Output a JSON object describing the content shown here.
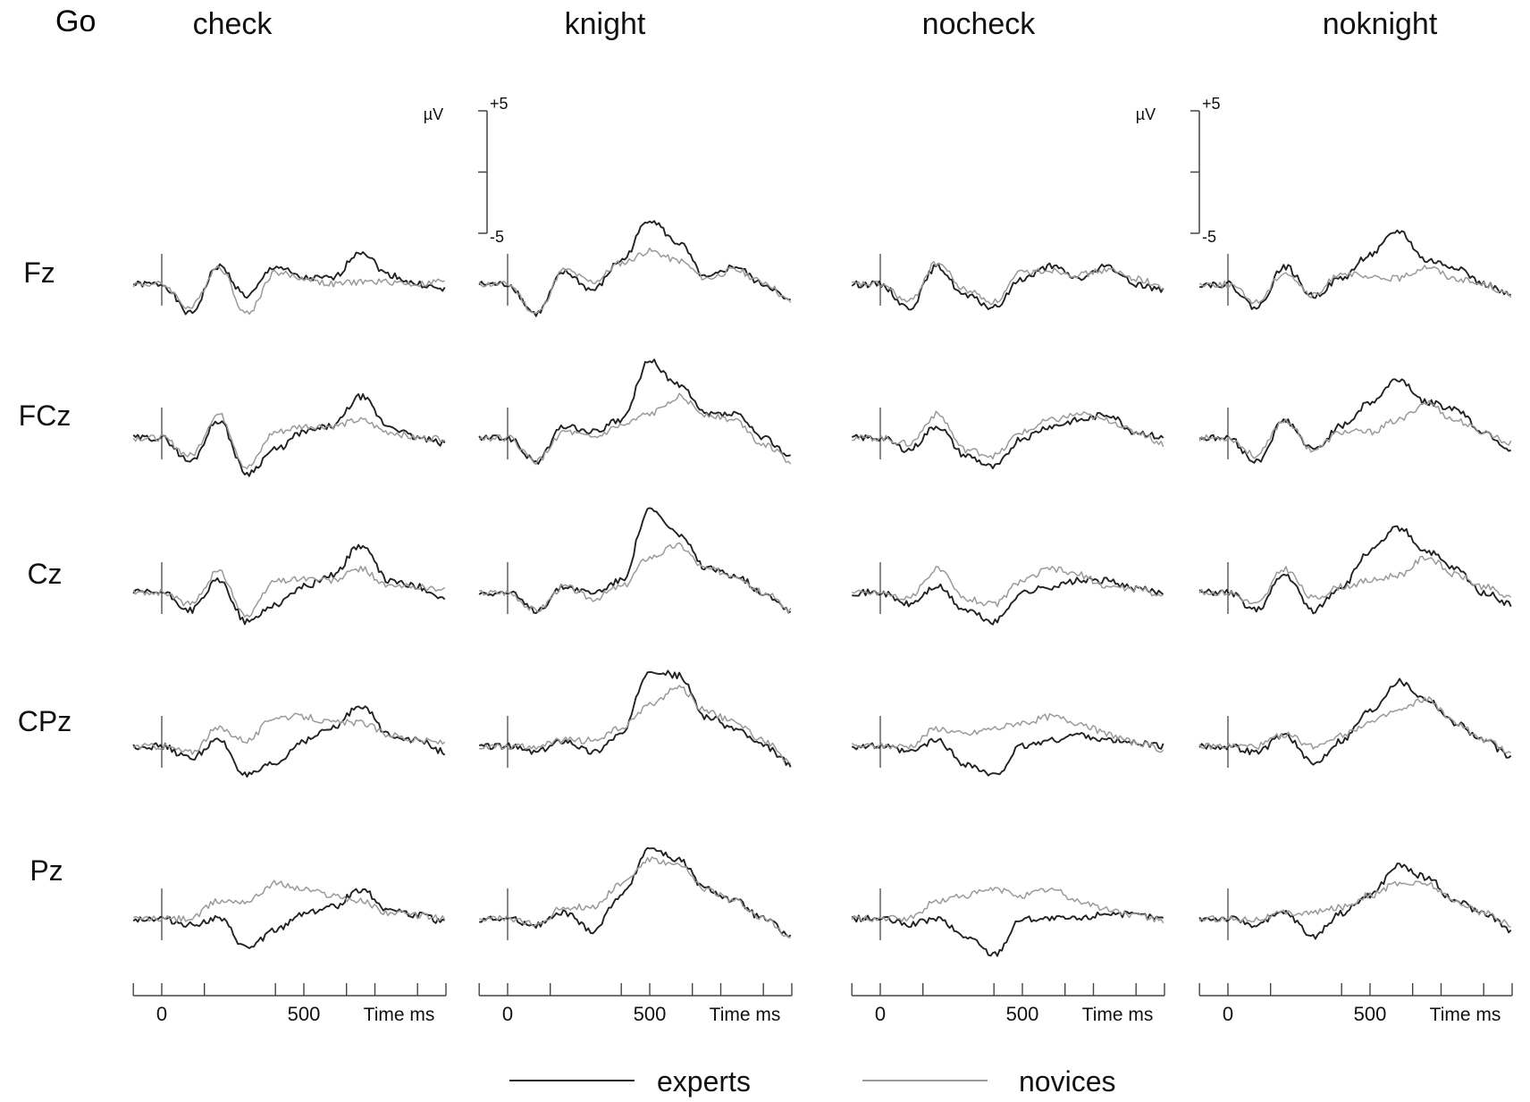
{
  "figure": {
    "stimulus_label": "Go",
    "conditions": [
      "check",
      "knight",
      "nocheck",
      "noknight"
    ],
    "channels": [
      "Fz",
      "FCz",
      "Cz",
      "CPz",
      "Pz"
    ],
    "scale_bar": {
      "unit": "µV",
      "top_label": "+5",
      "bottom_label": "-5"
    },
    "time_axis": {
      "ticks": [
        0,
        500
      ],
      "title": "Time ms"
    },
    "legend": [
      {
        "name": "experts",
        "color": "#222222"
      },
      {
        "name": "novices",
        "color": "#9a9a9a"
      }
    ]
  },
  "chart_data": {
    "type": "line",
    "title": "",
    "xlabel": "Time ms",
    "ylabel": "µV",
    "x_unit": "ms",
    "y_unit": "µV",
    "xlim": [
      -100,
      1000
    ],
    "ylim": [
      -5,
      5
    ],
    "x": [
      0,
      100,
      200,
      300,
      400,
      500,
      600,
      700,
      800,
      900,
      1000
    ],
    "grid": false,
    "legend_position": "bottom",
    "panels": [
      {
        "condition": "check",
        "channel": "Fz",
        "series": [
          {
            "name": "experts",
            "values": [
              0,
              -2.5,
              1.5,
              -1,
              1.5,
              0.5,
              0.5,
              2.8,
              0.8,
              0,
              -0.5
            ]
          },
          {
            "name": "novices",
            "values": [
              0,
              -2,
              1.5,
              -2.5,
              1,
              0.5,
              0,
              0.2,
              0.2,
              0,
              0.3
            ]
          }
        ]
      },
      {
        "condition": "knight",
        "channel": "Fz",
        "series": [
          {
            "name": "experts",
            "values": [
              0,
              -2.5,
              1,
              -0.5,
              2,
              5.5,
              3.5,
              0.5,
              1.5,
              0,
              -1.5
            ]
          },
          {
            "name": "novices",
            "values": [
              0,
              -2.5,
              1.2,
              0.2,
              1.8,
              2.8,
              2,
              0.5,
              1.2,
              0.2,
              -1.5
            ]
          }
        ]
      },
      {
        "condition": "nocheck",
        "channel": "Fz",
        "series": [
          {
            "name": "experts",
            "values": [
              0,
              -2,
              1.5,
              -1,
              -2,
              0.5,
              1.5,
              0.5,
              1.5,
              0,
              -0.5
            ]
          },
          {
            "name": "novices",
            "values": [
              0,
              -1.5,
              1.8,
              -0.5,
              -1.5,
              1,
              1.2,
              0.8,
              1.2,
              0.5,
              -0.3
            ]
          }
        ]
      },
      {
        "condition": "noknight",
        "channel": "Fz",
        "series": [
          {
            "name": "experts",
            "values": [
              0,
              -2,
              1.5,
              -1,
              0.5,
              2.5,
              4.5,
              2,
              1.5,
              0,
              -1
            ]
          },
          {
            "name": "novices",
            "values": [
              0,
              -1.5,
              1,
              -1,
              1,
              0.5,
              0.5,
              1.5,
              0.5,
              0,
              -1
            ]
          }
        ]
      },
      {
        "condition": "check",
        "channel": "FCz",
        "series": [
          {
            "name": "experts",
            "values": [
              0,
              -2,
              1.5,
              -3,
              -1,
              0.5,
              1,
              3.5,
              1,
              0,
              -0.5
            ]
          },
          {
            "name": "novices",
            "values": [
              0,
              -1.5,
              2,
              -2.5,
              0.5,
              1,
              1,
              1.5,
              0.5,
              0,
              0
            ]
          }
        ]
      },
      {
        "condition": "knight",
        "channel": "FCz",
        "series": [
          {
            "name": "experts",
            "values": [
              0,
              -2,
              1,
              0.5,
              1.5,
              6.5,
              4.5,
              2,
              2,
              0,
              -1.5
            ]
          },
          {
            "name": "novices",
            "values": [
              0,
              -2,
              0.5,
              0,
              1,
              2,
              3.5,
              2,
              1.5,
              -0.5,
              -2
            ]
          }
        ]
      },
      {
        "condition": "nocheck",
        "channel": "FCz",
        "series": [
          {
            "name": "experts",
            "values": [
              0,
              -1,
              1,
              -1.5,
              -2.5,
              0,
              1,
              1.5,
              2,
              0.5,
              0
            ]
          },
          {
            "name": "novices",
            "values": [
              0,
              -0.5,
              2,
              -1,
              -1.5,
              0.5,
              1.5,
              2,
              1.5,
              0.5,
              -0.5
            ]
          }
        ]
      },
      {
        "condition": "noknight",
        "channel": "FCz",
        "series": [
          {
            "name": "experts",
            "values": [
              0,
              -2,
              1.5,
              -1,
              1,
              3,
              5,
              3,
              2.5,
              0.5,
              -1
            ]
          },
          {
            "name": "novices",
            "values": [
              0,
              -1.5,
              1.5,
              -1,
              0.5,
              0.5,
              1.5,
              3,
              1.5,
              0.5,
              -0.5
            ]
          }
        ]
      },
      {
        "condition": "check",
        "channel": "Cz",
        "series": [
          {
            "name": "experts",
            "values": [
              0,
              -1.5,
              1,
              -2.5,
              -1,
              0.5,
              1.5,
              4,
              1,
              0.5,
              -0.5
            ]
          },
          {
            "name": "novices",
            "values": [
              0,
              -1,
              1.8,
              -2,
              1,
              1.2,
              1,
              2,
              0.5,
              0.5,
              0.2
            ]
          }
        ]
      },
      {
        "condition": "knight",
        "channel": "Cz",
        "series": [
          {
            "name": "experts",
            "values": [
              0,
              -1.5,
              0.5,
              0,
              1,
              7,
              5,
              2,
              1.5,
              0,
              -1.5
            ]
          },
          {
            "name": "novices",
            "values": [
              0,
              -1.5,
              0.5,
              -0.5,
              0.5,
              3,
              4,
              2,
              1.5,
              0,
              -1.5
            ]
          }
        ]
      },
      {
        "condition": "nocheck",
        "channel": "Cz",
        "series": [
          {
            "name": "experts",
            "values": [
              0,
              -1,
              0.5,
              -1.5,
              -2.5,
              0,
              0.5,
              1,
              1,
              0.3,
              0
            ]
          },
          {
            "name": "novices",
            "values": [
              0,
              -0.5,
              2,
              -0.5,
              -1,
              1,
              2,
              1.5,
              0.5,
              0.3,
              -0.3
            ]
          }
        ]
      },
      {
        "condition": "noknight",
        "channel": "Cz",
        "series": [
          {
            "name": "experts",
            "values": [
              0,
              -1.5,
              1.5,
              -1.5,
              0.5,
              3.5,
              5.5,
              3.5,
              2,
              0,
              -1
            ]
          },
          {
            "name": "novices",
            "values": [
              0,
              -1,
              2,
              -0.5,
              0.5,
              1,
              1.5,
              3,
              1.5,
              0.5,
              -0.5
            ]
          }
        ]
      },
      {
        "condition": "check",
        "channel": "CPz",
        "series": [
          {
            "name": "experts",
            "values": [
              0,
              -1,
              0.5,
              -2.5,
              -1.5,
              0.5,
              1.5,
              3.5,
              1,
              0.5,
              -0.5
            ]
          },
          {
            "name": "novices",
            "values": [
              0,
              -0.5,
              1.5,
              0.5,
              2.5,
              2.5,
              2,
              2,
              1,
              0.5,
              0.3
            ]
          }
        ]
      },
      {
        "condition": "knight",
        "channel": "CPz",
        "series": [
          {
            "name": "experts",
            "values": [
              0,
              -0.5,
              0.5,
              -0.5,
              1,
              6.5,
              6,
              2.5,
              1.5,
              0,
              -1.5
            ]
          },
          {
            "name": "novices",
            "values": [
              0,
              0,
              0.5,
              0.5,
              1.5,
              3.5,
              5,
              3,
              2,
              0.5,
              -1.5
            ]
          }
        ]
      },
      {
        "condition": "nocheck",
        "channel": "CPz",
        "series": [
          {
            "name": "experts",
            "values": [
              0,
              -0.5,
              0.5,
              -1.5,
              -2.5,
              0,
              0.5,
              1,
              0.5,
              0.3,
              0
            ]
          },
          {
            "name": "novices",
            "values": [
              0,
              0,
              1.5,
              1,
              1.5,
              2,
              2.5,
              2,
              1,
              0.3,
              -0.3
            ]
          }
        ]
      },
      {
        "condition": "noknight",
        "channel": "CPz",
        "series": [
          {
            "name": "experts",
            "values": [
              0,
              -0.5,
              1,
              -1.5,
              0.5,
              3,
              5.5,
              4,
              2,
              0.5,
              -1
            ]
          },
          {
            "name": "novices",
            "values": [
              0,
              0,
              1,
              0,
              1,
              2,
              3,
              4,
              2,
              0.5,
              -0.5
            ]
          }
        ]
      },
      {
        "condition": "check",
        "channel": "Pz",
        "series": [
          {
            "name": "experts",
            "values": [
              0,
              -0.5,
              0,
              -2.5,
              -1,
              0.5,
              1,
              2.5,
              0.8,
              0.3,
              -0.3
            ]
          },
          {
            "name": "novices",
            "values": [
              0,
              0,
              1.5,
              1.5,
              3,
              2.5,
              2,
              1.5,
              0.5,
              0.3,
              0
            ]
          }
        ]
      },
      {
        "condition": "knight",
        "channel": "Pz",
        "series": [
          {
            "name": "experts",
            "values": [
              0,
              -0.5,
              0.5,
              -1,
              2,
              6,
              5,
              2.5,
              1.5,
              0,
              -1.5
            ]
          },
          {
            "name": "novices",
            "values": [
              0,
              -0.5,
              1,
              1,
              3,
              5,
              4.5,
              2.5,
              1.5,
              0,
              -1.5
            ]
          }
        ]
      },
      {
        "condition": "nocheck",
        "channel": "Pz",
        "series": [
          {
            "name": "experts",
            "values": [
              0,
              -0.5,
              0,
              -1.5,
              -3,
              0,
              0,
              0,
              0.5,
              0.3,
              0
            ]
          },
          {
            "name": "novices",
            "values": [
              0,
              0,
              1.5,
              2,
              2.5,
              2,
              2.5,
              1.5,
              0.8,
              0.3,
              -0.2
            ]
          }
        ]
      },
      {
        "condition": "noknight",
        "channel": "Pz",
        "series": [
          {
            "name": "experts",
            "values": [
              0,
              -0.5,
              0.5,
              -1.5,
              0.5,
              2,
              4.5,
              3.5,
              1.5,
              0.5,
              -1
            ]
          },
          {
            "name": "novices",
            "values": [
              0,
              0,
              0.5,
              0.5,
              1,
              2,
              3,
              3,
              1.5,
              0.5,
              -0.5
            ]
          }
        ]
      }
    ]
  }
}
